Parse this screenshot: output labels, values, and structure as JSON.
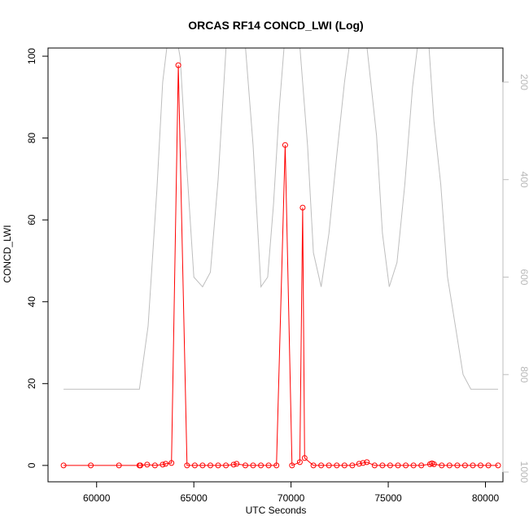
{
  "chart_data": {
    "type": "line",
    "title": "ORCAS RF14 CONCD_LWI (Log)",
    "xlabel": "UTC Seconds",
    "ylabel": "CONCD_LWI",
    "xlim": [
      57500,
      80900
    ],
    "ylim": [
      -4,
      102
    ],
    "x_ticks": [
      60000,
      65000,
      70000,
      75000,
      80000
    ],
    "y_ticks": [
      0,
      20,
      40,
      60,
      80,
      100
    ],
    "grid": false,
    "legend": "none",
    "colors": {
      "concd_series": "#ff0000",
      "pressure_series": "#bebebe",
      "axis": "#000000",
      "right_axis": "#bebebe"
    },
    "series": [
      {
        "axis": "left",
        "style": "line+points",
        "color": "#ff0000",
        "x": [
          58300,
          59700,
          61150,
          62200,
          62250,
          62600,
          63000,
          63400,
          63550,
          63850,
          64200,
          64650,
          65050,
          65450,
          65850,
          66250,
          66650,
          67050,
          67200,
          67650,
          68050,
          68450,
          68850,
          69250,
          69700,
          70050,
          70450,
          70600,
          70700,
          71150,
          71550,
          71950,
          72350,
          72750,
          73150,
          73500,
          73700,
          73900,
          74300,
          74700,
          75100,
          75500,
          75900,
          76300,
          76700,
          77150,
          77250,
          77350,
          77750,
          78150,
          78550,
          78950,
          79350,
          79750,
          80150,
          80650
        ],
        "y": [
          0,
          0,
          0,
          0,
          0,
          0.2,
          0,
          0.2,
          0.4,
          0.6,
          97.8,
          0,
          0,
          0,
          0,
          0,
          0,
          0.2,
          0.4,
          0,
          0,
          0,
          0,
          0,
          78.3,
          0,
          0.8,
          63,
          1.8,
          0,
          0,
          0,
          0,
          0,
          0,
          0.4,
          0.6,
          0.8,
          0,
          0,
          0,
          0,
          0,
          0,
          0,
          0.3,
          0.5,
          0.3,
          0,
          0,
          0,
          0,
          0,
          0,
          0,
          0
        ]
      },
      {
        "axis": "right",
        "style": "line",
        "color": "#bebebe",
        "ylim_right": [
          1020,
          130
        ],
        "right_ticks": [
          200,
          400,
          600,
          800,
          1000
        ],
        "x": [
          58300,
          59700,
          61200,
          62200,
          62650,
          63100,
          63400,
          63700,
          64000,
          64300,
          64600,
          65000,
          65450,
          65850,
          66250,
          66700,
          67100,
          67600,
          68050,
          68450,
          68800,
          69100,
          69400,
          69700,
          70000,
          70400,
          70850,
          71150,
          71550,
          71950,
          72350,
          72750,
          73150,
          73500,
          73800,
          74100,
          74400,
          74700,
          75050,
          75450,
          75850,
          76250,
          76650,
          77050,
          77350,
          77700,
          78050,
          78450,
          78850,
          79250,
          79600,
          80000,
          80650
        ],
        "y": [
          830,
          830,
          830,
          830,
          700,
          420,
          200,
          100,
          80,
          150,
          350,
          600,
          620,
          590,
          400,
          100,
          80,
          100,
          330,
          620,
          600,
          450,
          250,
          100,
          80,
          100,
          330,
          550,
          620,
          510,
          350,
          200,
          80,
          120,
          90,
          200,
          310,
          510,
          620,
          570,
          410,
          210,
          80,
          100,
          280,
          410,
          600,
          700,
          800,
          830,
          830,
          830,
          830
        ]
      }
    ]
  }
}
